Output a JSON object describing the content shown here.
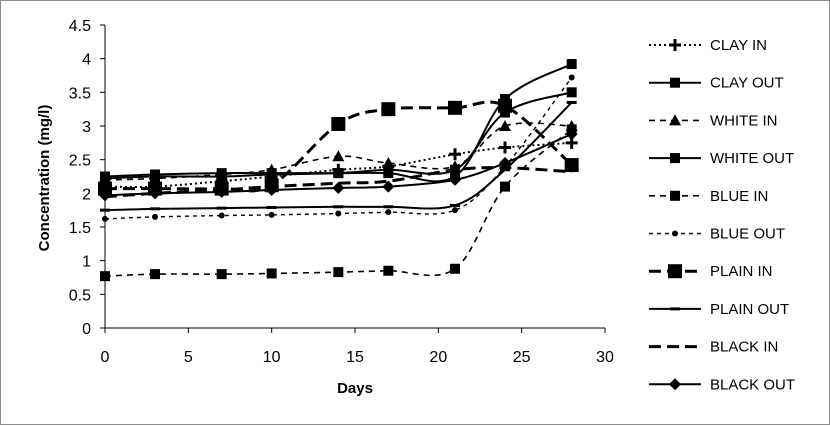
{
  "chart_data": {
    "type": "line",
    "title": "",
    "xlabel": "Days",
    "ylabel": "Concentration (mg/l)",
    "xlim": [
      0,
      30
    ],
    "ylim": [
      0,
      4.5
    ],
    "xticks": [
      0,
      5,
      10,
      15,
      20,
      25,
      30
    ],
    "yticks": [
      0,
      0.5,
      1,
      1.5,
      2,
      2.5,
      3,
      3.5,
      4,
      4.5
    ],
    "xtick_labels": [
      "0",
      "5",
      "10",
      "15",
      "20",
      "25",
      "30"
    ],
    "ytick_labels": [
      "0",
      "0.5",
      "1",
      "1.5",
      "2",
      "2.5",
      "3",
      "3.5",
      "4",
      "4.5"
    ],
    "grid": false,
    "legend_position": "right",
    "x": [
      0,
      3,
      7,
      10,
      14,
      17,
      21,
      24,
      28
    ],
    "series": [
      {
        "name": "CLAY IN",
        "values": [
          2.1,
          2.1,
          2.18,
          2.25,
          2.35,
          2.4,
          2.58,
          2.68,
          2.75
        ],
        "line": "dot",
        "marker": "plus"
      },
      {
        "name": "CLAY OUT",
        "values": [
          2.22,
          2.25,
          2.25,
          2.28,
          2.3,
          2.35,
          2.35,
          3.2,
          3.5
        ],
        "line": "solid",
        "marker": "square"
      },
      {
        "name": "WHITE IN",
        "values": [
          2.2,
          2.22,
          2.28,
          2.35,
          2.55,
          2.45,
          2.4,
          3.0,
          3.0
        ],
        "line": "dash",
        "marker": "triangle"
      },
      {
        "name": "WHITE OUT",
        "values": [
          2.25,
          2.28,
          2.3,
          2.3,
          2.3,
          2.3,
          2.25,
          3.4,
          3.92
        ],
        "line": "solid",
        "marker": "square"
      },
      {
        "name": "BLUE IN",
        "values": [
          0.77,
          0.8,
          0.8,
          0.81,
          0.83,
          0.85,
          0.88,
          2.1,
          2.95
        ],
        "line": "dash",
        "marker": "square"
      },
      {
        "name": "BLUE OUT",
        "values": [
          1.62,
          1.65,
          1.67,
          1.68,
          1.7,
          1.72,
          1.75,
          2.4,
          3.72
        ],
        "line": "shortdash",
        "marker": "circle"
      },
      {
        "name": "PLAIN IN",
        "values": [
          2.07,
          2.07,
          2.07,
          2.12,
          3.03,
          3.25,
          3.27,
          3.3,
          2.42
        ],
        "line": "longdash",
        "marker": "bigsquare"
      },
      {
        "name": "PLAIN OUT",
        "values": [
          1.75,
          1.77,
          1.78,
          1.79,
          1.8,
          1.8,
          1.82,
          2.35,
          3.35
        ],
        "line": "solid",
        "marker": "dash"
      },
      {
        "name": "BLACK IN",
        "values": [
          1.95,
          2.0,
          2.05,
          2.1,
          2.15,
          2.18,
          2.35,
          2.38,
          2.32
        ],
        "line": "longdash",
        "marker": "none"
      },
      {
        "name": "BLACK OUT",
        "values": [
          1.97,
          2.0,
          2.02,
          2.05,
          2.08,
          2.1,
          2.2,
          2.45,
          2.88
        ],
        "line": "solid",
        "marker": "diamond"
      }
    ]
  }
}
